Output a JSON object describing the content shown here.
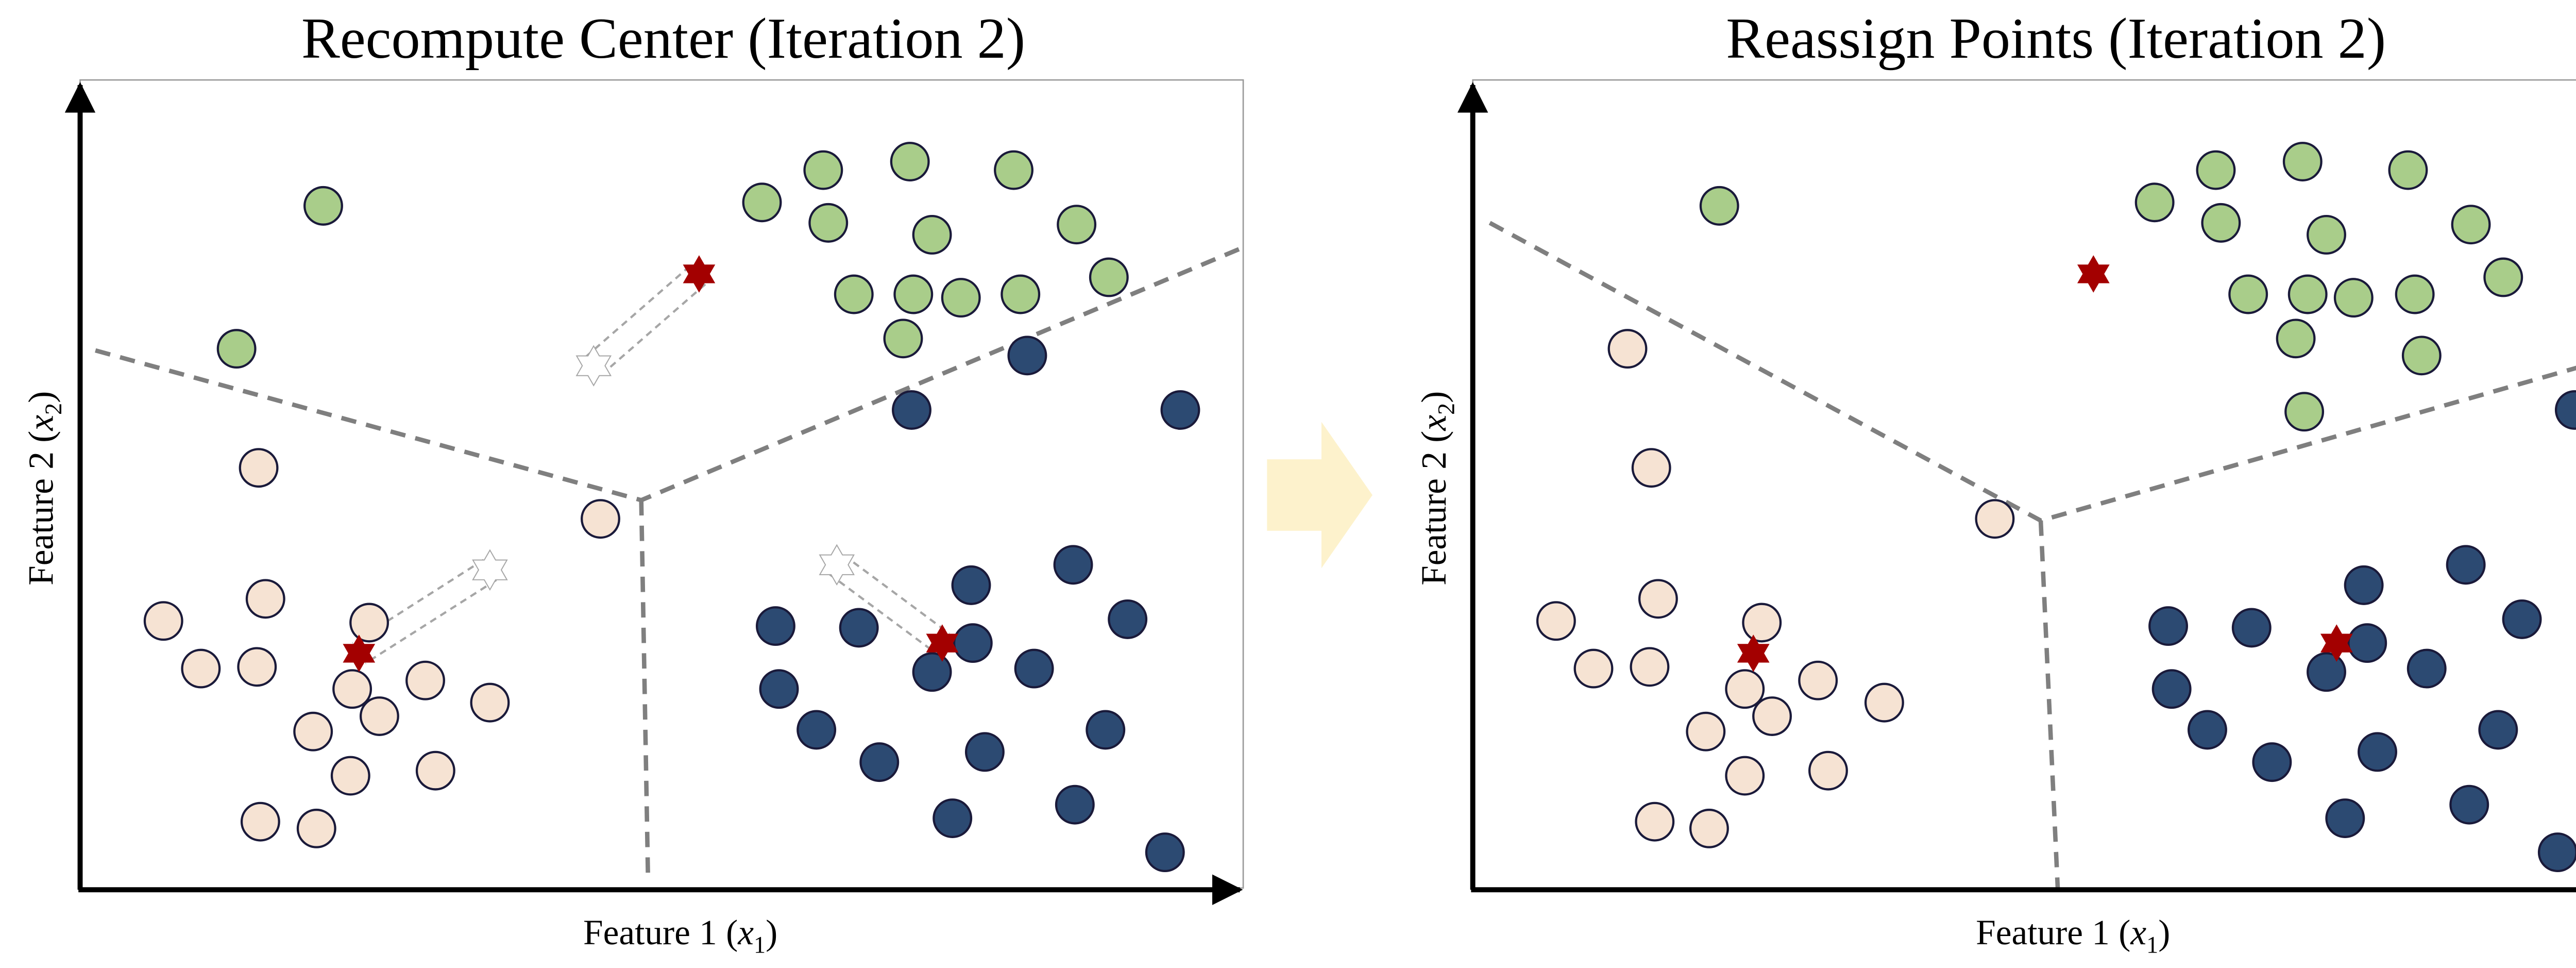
{
  "colors": {
    "pink": "#f6e3d3",
    "green": "#a9cd8a",
    "blue": "#2c4a72",
    "point_stroke": "#1a1a3a",
    "centroid": "#a30000",
    "ghost_centroid": "#ffffff",
    "ghost_stroke": "#a6a6a6",
    "boundary": "#7f7f7f",
    "arrow": "#fdf2cc"
  },
  "icons": {
    "centroid": "six-point-star-icon",
    "transition": "right-arrow-icon"
  },
  "panels": [
    {
      "id": "recompute",
      "title": "Recompute Center (Iteration 2)",
      "xlabel": {
        "pre": "Feature 1 (",
        "var": "x",
        "sub": "1",
        "post": ")"
      },
      "ylabel": {
        "pre": "Feature 2 (",
        "var": "x",
        "sub": "2",
        "post": ")"
      },
      "points": {
        "green": [
          [
            190,
            121
          ],
          [
            139,
            205
          ],
          [
            448,
            119
          ],
          [
            484,
            100
          ],
          [
            535,
            95
          ],
          [
            596,
            100
          ],
          [
            487,
            131
          ],
          [
            548,
            138
          ],
          [
            633,
            132
          ],
          [
            502,
            173
          ],
          [
            537,
            173
          ],
          [
            565,
            175
          ],
          [
            600,
            173
          ],
          [
            652,
            163
          ],
          [
            531,
            199
          ]
        ],
        "pink": [
          [
            152,
            275
          ],
          [
            353,
            305
          ],
          [
            156,
            352
          ],
          [
            96,
            365
          ],
          [
            217,
            366
          ],
          [
            118,
            393
          ],
          [
            151,
            392
          ],
          [
            250,
            400
          ],
          [
            288,
            413
          ],
          [
            207,
            405
          ],
          [
            223,
            421
          ],
          [
            184,
            430
          ],
          [
            256,
            453
          ],
          [
            206,
            456
          ],
          [
            153,
            483
          ],
          [
            186,
            487
          ]
        ],
        "blue": [
          [
            604,
            209
          ],
          [
            536,
            241
          ],
          [
            694,
            241
          ],
          [
            631,
            332
          ],
          [
            571,
            344
          ],
          [
            663,
            364
          ],
          [
            456,
            368
          ],
          [
            505,
            369
          ],
          [
            572,
            378
          ],
          [
            548,
            395
          ],
          [
            608,
            393
          ],
          [
            458,
            405
          ],
          [
            480,
            429
          ],
          [
            650,
            429
          ],
          [
            579,
            442
          ],
          [
            517,
            448
          ],
          [
            632,
            473
          ],
          [
            560,
            481
          ],
          [
            685,
            501
          ]
        ]
      },
      "centroids": [
        [
          411,
          161
        ],
        [
          211,
          384
        ],
        [
          554,
          378
        ]
      ],
      "ghosts": [
        [
          349,
          215
        ],
        [
          288,
          335
        ],
        [
          492,
          332
        ]
      ],
      "boundaries": [
        [
          [
            56,
            206
          ],
          [
            377,
            294
          ],
          [
            732,
            145
          ]
        ],
        [
          [
            377,
            294
          ],
          [
            381,
            518
          ]
        ]
      ]
    },
    {
      "id": "reassign",
      "title": "Reassign Points (Iteration 2)",
      "xlabel": {
        "pre": "Feature 1 (",
        "var": "x",
        "sub": "1",
        "post": ")"
      },
      "ylabel": {
        "pre": "Feature 2 (",
        "var": "x",
        "sub": "2",
        "post": ")"
      },
      "points": {
        "green": [
          [
            1011,
            121
          ],
          [
            1267,
            119
          ],
          [
            1303,
            100
          ],
          [
            1354,
            95
          ],
          [
            1416,
            100
          ],
          [
            1306,
            131
          ],
          [
            1368,
            138
          ],
          [
            1453,
            132
          ],
          [
            1322,
            173
          ],
          [
            1357,
            173
          ],
          [
            1384,
            175
          ],
          [
            1420,
            173
          ],
          [
            1472,
            163
          ],
          [
            1350,
            199
          ],
          [
            1424,
            209
          ],
          [
            1355,
            242
          ]
        ],
        "pink": [
          [
            957,
            205
          ],
          [
            971,
            275
          ],
          [
            1173,
            305
          ],
          [
            975,
            352
          ],
          [
            915,
            365
          ],
          [
            1036,
            366
          ],
          [
            937,
            393
          ],
          [
            970,
            392
          ],
          [
            1069,
            400
          ],
          [
            1108,
            413
          ],
          [
            1026,
            405
          ],
          [
            1042,
            421
          ],
          [
            1003,
            430
          ],
          [
            1075,
            453
          ],
          [
            1026,
            456
          ],
          [
            973,
            483
          ],
          [
            1005,
            487
          ]
        ],
        "blue": [
          [
            1514,
            241
          ],
          [
            1450,
            332
          ],
          [
            1390,
            344
          ],
          [
            1483,
            364
          ],
          [
            1275,
            368
          ],
          [
            1324,
            369
          ],
          [
            1392,
            378
          ],
          [
            1368,
            395
          ],
          [
            1427,
            393
          ],
          [
            1277,
            405
          ],
          [
            1298,
            429
          ],
          [
            1469,
            429
          ],
          [
            1398,
            442
          ],
          [
            1336,
            448
          ],
          [
            1452,
            473
          ],
          [
            1379,
            481
          ],
          [
            1504,
            501
          ]
        ]
      },
      "centroids": [
        [
          1231,
          161
        ],
        [
          1031,
          384
        ],
        [
          1374,
          378
        ]
      ],
      "ghosts": [],
      "boundaries": [
        [
          [
            876,
            131
          ],
          [
            1200,
            306
          ],
          [
            1551,
            206
          ]
        ],
        [
          [
            1200,
            306
          ],
          [
            1210,
            522
          ]
        ]
      ]
    }
  ]
}
